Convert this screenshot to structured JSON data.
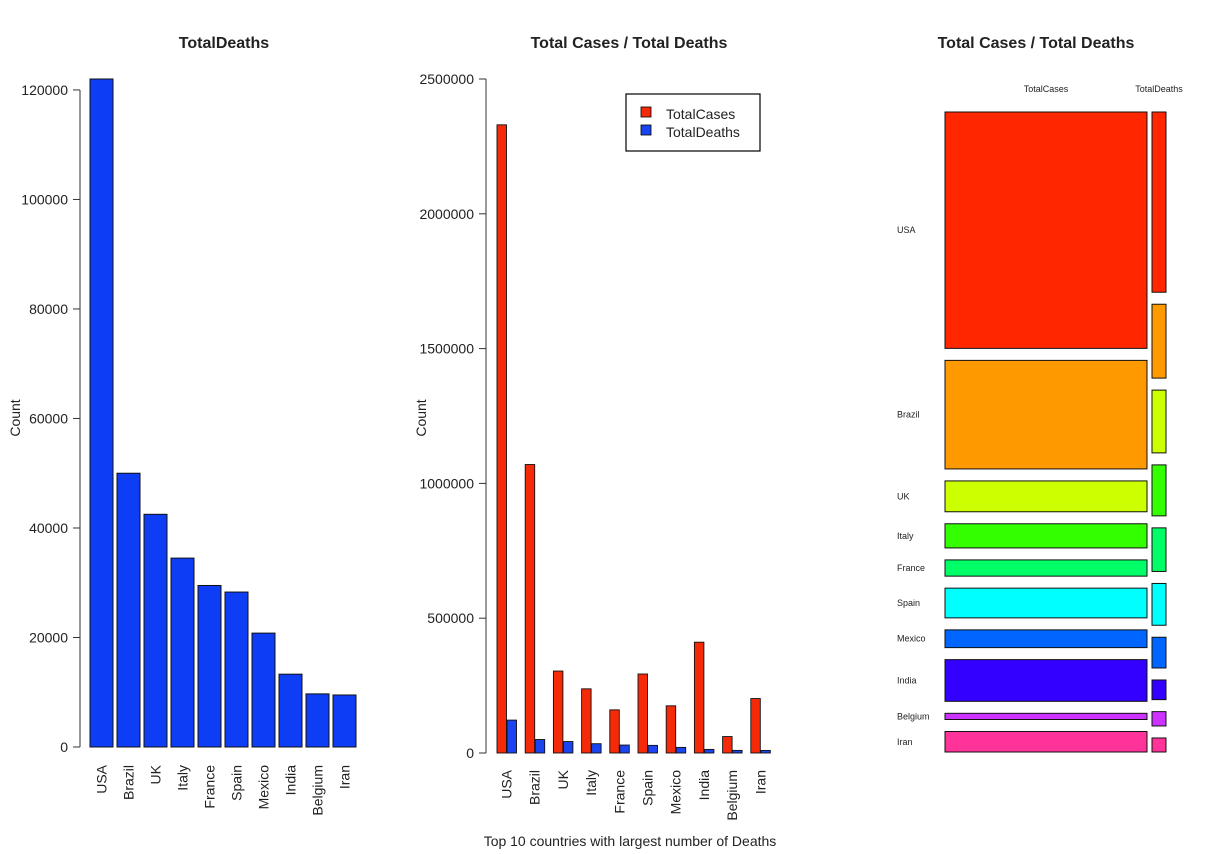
{
  "colors": {
    "deaths_bar": "#0d3df5",
    "cases_bar": "#f52a08",
    "deaths_bar_grouped": "#1a44f0",
    "mosaic_palette": [
      "#ff2600",
      "#ff9900",
      "#ccff00",
      "#33ff00",
      "#00ff66",
      "#00ffff",
      "#0066ff",
      "#3300ff",
      "#cc33ff",
      "#ff3399"
    ]
  },
  "chart_data": [
    {
      "type": "bar",
      "title": "TotalDeaths",
      "xlabel": "",
      "ylabel": "Count",
      "ylim": [
        0,
        122000
      ],
      "yticks": [
        0,
        20000,
        40000,
        60000,
        80000,
        100000,
        120000
      ],
      "categories": [
        "USA",
        "Brazil",
        "UK",
        "Italy",
        "France",
        "Spain",
        "Mexico",
        "India",
        "Belgium",
        "Iran"
      ],
      "series": [
        {
          "values": [
            122000,
            50000,
            42500,
            34500,
            29500,
            28300,
            20800,
            13300,
            9700,
            9500
          ]
        }
      ],
      "grid": false,
      "legend": "none"
    },
    {
      "type": "bar",
      "title": "Total Cases / Total Deaths",
      "xlabel": "Top 10 countries with largest number of Deaths",
      "ylabel": "Count",
      "ylim": [
        0,
        2500000
      ],
      "yticks": [
        0,
        500000,
        1000000,
        1500000,
        2000000,
        2500000
      ],
      "categories": [
        "USA",
        "Brazil",
        "UK",
        "Italy",
        "France",
        "Spain",
        "Mexico",
        "India",
        "Belgium",
        "Iran"
      ],
      "series": [
        {
          "name": "TotalCases",
          "values": [
            2330000,
            1070000,
            304000,
            238000,
            160000,
            293000,
            175000,
            411000,
            61000,
            202000
          ]
        },
        {
          "name": "TotalDeaths",
          "values": [
            122000,
            50000,
            42500,
            34500,
            29500,
            28300,
            20800,
            13300,
            9700,
            9500
          ]
        }
      ],
      "grid": false,
      "legend": "top-right"
    },
    {
      "type": "mosaic",
      "title": "Total Cases / Total Deaths",
      "columns": [
        "TotalCases",
        "TotalDeaths"
      ],
      "rows": [
        "USA",
        "Brazil",
        "UK",
        "Italy",
        "France",
        "Spain",
        "Mexico",
        "India",
        "Belgium",
        "Iran"
      ],
      "cases": [
        2330000,
        1070000,
        304000,
        238000,
        160000,
        293000,
        175000,
        411000,
        61000,
        202000
      ],
      "deaths": [
        122000,
        50000,
        42500,
        34500,
        29500,
        28300,
        20800,
        13300,
        9700,
        9500
      ],
      "grid": false,
      "legend": "none"
    }
  ]
}
